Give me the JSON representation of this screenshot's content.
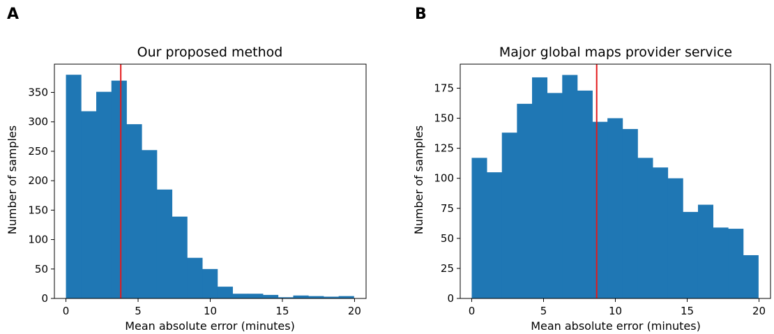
{
  "chart_data": [
    {
      "type": "bar",
      "panel_label": "A",
      "title": "Our proposed method",
      "xlabel": "Mean absolute error (minutes)",
      "ylabel": "Number of samples",
      "bin_edges": [
        0,
        1.05,
        2.1,
        3.15,
        4.2,
        5.25,
        6.3,
        7.35,
        8.4,
        9.45,
        10.5,
        11.55,
        12.6,
        13.65,
        14.7,
        15.75,
        16.8,
        17.85,
        18.9,
        19.95
      ],
      "values": [
        380,
        318,
        351,
        370,
        296,
        252,
        185,
        139,
        69,
        50,
        20,
        8,
        8,
        6,
        2,
        5,
        4,
        3,
        4
      ],
      "xlim": [
        -0.8,
        20.8
      ],
      "ylim": [
        0,
        398
      ],
      "xticks": [
        0,
        5,
        10,
        15,
        20
      ],
      "yticks": [
        0,
        50,
        100,
        150,
        200,
        250,
        300,
        350
      ],
      "reference_line": 3.8,
      "bar_color": "#1f77b4",
      "line_color": "#e31a1c"
    },
    {
      "type": "bar",
      "panel_label": "B",
      "title": "Major global maps provider service",
      "xlabel": "Mean absolute error (minutes)",
      "ylabel": "Number of samples",
      "bin_edges": [
        0,
        1.05,
        2.1,
        3.15,
        4.2,
        5.25,
        6.3,
        7.35,
        8.4,
        9.45,
        10.5,
        11.55,
        12.6,
        13.65,
        14.7,
        15.75,
        16.8,
        17.85,
        18.9,
        19.95
      ],
      "values": [
        117,
        105,
        138,
        162,
        184,
        171,
        186,
        173,
        147,
        150,
        141,
        117,
        109,
        100,
        72,
        78,
        59,
        58,
        36
      ],
      "xlim": [
        -0.8,
        20.8
      ],
      "ylim": [
        0,
        195
      ],
      "xticks": [
        0,
        5,
        10,
        15,
        20
      ],
      "yticks": [
        0,
        25,
        50,
        75,
        100,
        125,
        150,
        175
      ],
      "reference_line": 8.7,
      "bar_color": "#1f77b4",
      "line_color": "#e31a1c"
    }
  ]
}
